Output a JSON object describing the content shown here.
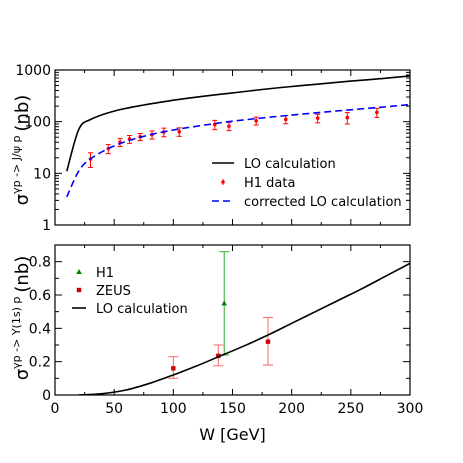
{
  "chart_data": [
    {
      "type": "line",
      "ylabel_sub": "γp -> J/ψ p",
      "ylabel_prefix": "σ",
      "ylabel_unit": "(nb)",
      "xlim": [
        0,
        300
      ],
      "ylim": [
        1,
        1000
      ],
      "yscale": "log",
      "xticks": [
        0,
        50,
        100,
        150,
        200,
        250,
        300
      ],
      "yticks": [
        1,
        10,
        100,
        1000
      ],
      "ytick_labels": [
        "1",
        "10",
        "100",
        "1000"
      ],
      "legend_position": "lower-right",
      "series": [
        {
          "name": "LO calculation",
          "style": "solid",
          "color": "#000000",
          "x": [
            10,
            20,
            30,
            50,
            75,
            100,
            125,
            150,
            175,
            200,
            225,
            250,
            275,
            300
          ],
          "y": [
            11,
            70,
            110,
            160,
            210,
            260,
            310,
            360,
            420,
            480,
            540,
            610,
            680,
            770
          ]
        },
        {
          "name": "H1 data",
          "style": "points",
          "color": "#ff0000",
          "x": [
            30,
            45,
            55,
            63,
            72,
            82,
            92,
            105,
            135,
            147,
            170,
            195,
            222,
            247,
            272
          ],
          "y": [
            19,
            30,
            40,
            46,
            51,
            56,
            63,
            64,
            88,
            82,
            104,
            111,
            117,
            120,
            151
          ],
          "yerr": [
            6,
            6,
            7,
            8,
            8,
            10,
            12,
            12,
            18,
            15,
            18,
            20,
            22,
            30,
            30
          ]
        },
        {
          "name": "corrected LO calculation",
          "style": "dashed",
          "color": "#0000ff",
          "x": [
            10,
            20,
            30,
            50,
            75,
            100,
            125,
            150,
            175,
            200,
            225,
            250,
            275,
            300
          ],
          "y": [
            3.5,
            11,
            19,
            34,
            52,
            69,
            85,
            102,
            118,
            134,
            152,
            170,
            190,
            215
          ]
        }
      ]
    },
    {
      "type": "line",
      "ylabel_sub": "γp -> Υ(1s) p",
      "ylabel_prefix": "σ",
      "ylabel_unit": "(nb)",
      "xlabel": "W [GeV]",
      "xlim": [
        0,
        300
      ],
      "ylim": [
        0,
        0.9
      ],
      "xticks": [
        0,
        50,
        100,
        150,
        200,
        250,
        300
      ],
      "yticks": [
        0,
        0.2,
        0.4,
        0.6,
        0.8
      ],
      "ytick_labels": [
        "0",
        "0.2",
        "0.4",
        "0.6",
        "0.8"
      ],
      "legend_position": "top-left",
      "series": [
        {
          "name": "H1",
          "style": "points",
          "marker": "triangle",
          "color": "#008000",
          "x": [
            143
          ],
          "y": [
            0.55
          ],
          "yerr_low": [
            0.31
          ],
          "yerr_high": [
            0.31
          ]
        },
        {
          "name": "ZEUS",
          "style": "points",
          "marker": "square",
          "color": "#cc0000",
          "x": [
            100,
            138,
            180
          ],
          "y": [
            0.16,
            0.235,
            0.32
          ],
          "yerr_low": [
            0.06,
            0.06,
            0.14
          ],
          "yerr_high": [
            0.07,
            0.065,
            0.145
          ]
        },
        {
          "name": "LO calculation",
          "style": "solid",
          "color": "#000000",
          "x": [
            20,
            40,
            60,
            80,
            100,
            120,
            140,
            160,
            180,
            200,
            220,
            240,
            260,
            280,
            300
          ],
          "y": [
            0.0,
            0.008,
            0.03,
            0.07,
            0.12,
            0.175,
            0.235,
            0.295,
            0.36,
            0.43,
            0.5,
            0.57,
            0.64,
            0.715,
            0.79
          ]
        }
      ]
    }
  ]
}
